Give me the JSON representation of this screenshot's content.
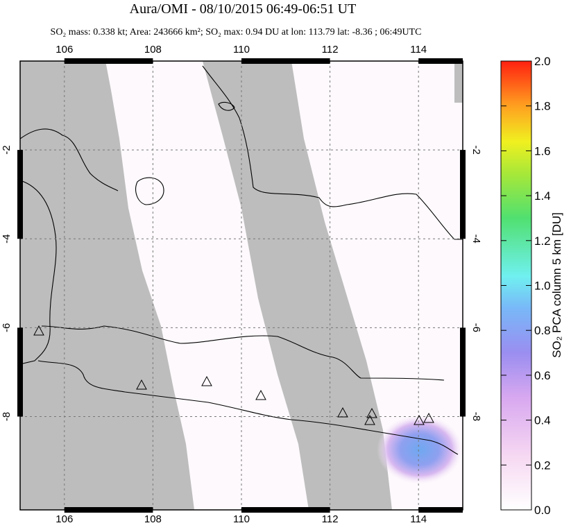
{
  "title": "Aura/OMI - 08/10/2015 06:49-06:51 UT",
  "subtitle": "SO₂ mass: 0.338 kt; Area: 243666 km²; SO₂ max: 0.94 DU at lon: 113.79 lat: -8.36 ; 06:49UTC",
  "map": {
    "xlim": [
      105,
      115
    ],
    "ylim": [
      -10.1,
      0
    ],
    "xticks": [
      106,
      108,
      110,
      112,
      114
    ],
    "yticks": [
      -2,
      -4,
      -6,
      -8
    ]
  },
  "colorbar": {
    "label": "SO₂ PCA column 5 km [DU]",
    "lim": [
      0,
      2
    ],
    "ticks": [
      {
        "value": 0,
        "label": "0.0"
      },
      {
        "value": 0.2,
        "label": "0.2"
      },
      {
        "value": 0.4,
        "label": "0.4"
      },
      {
        "value": 0.6,
        "label": "0.6"
      },
      {
        "value": 0.8,
        "label": "0.8"
      },
      {
        "value": 1,
        "label": "1.0"
      },
      {
        "value": 1.2,
        "label": "1.2"
      },
      {
        "value": 1.4,
        "label": "1.4"
      },
      {
        "value": 1.6,
        "label": "1.6"
      },
      {
        "value": 1.8,
        "label": "1.8"
      },
      {
        "value": 2,
        "label": "2.0"
      }
    ]
  }
}
